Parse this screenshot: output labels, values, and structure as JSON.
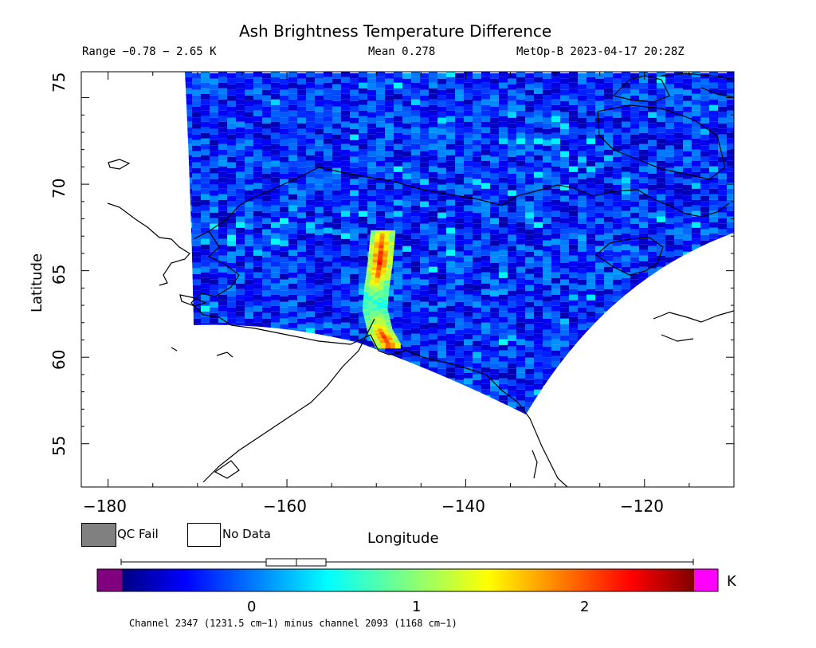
{
  "title": "Ash Brightness Temperature Difference",
  "header": {
    "range": "Range −0.78 − 2.65 K",
    "mean": "Mean 0.278",
    "satellite_time": "MetOp-B 2023-04-17 20:28Z"
  },
  "axes": {
    "xlabel": "Longitude",
    "ylabel": "Latitude",
    "xticks": [
      "−180",
      "−160",
      "−140",
      "−120"
    ],
    "yticks": [
      "75",
      "70",
      "65",
      "60",
      "55"
    ]
  },
  "legend": {
    "qc_fail": "QC Fail",
    "no_data": "No Data",
    "qc_color": "#808080"
  },
  "colorbar": {
    "unit": "K",
    "ticks": [
      "0",
      "1",
      "2"
    ],
    "under_color": "#800080",
    "over_color": "#ff00ff"
  },
  "caption": "Channel 2347 (1231.5 cm−1) minus channel 2093 (1168 cm−1)",
  "chart_data": {
    "type": "heatmap",
    "title": "Ash Brightness Temperature Difference",
    "xlabel": "Longitude",
    "ylabel": "Latitude",
    "xlim": [
      -183,
      -110
    ],
    "ylim": [
      52.5,
      76.5
    ],
    "value_range": [
      -0.78,
      2.65
    ],
    "mean": 0.278,
    "unit": "K",
    "colorbar_range": [
      -0.4,
      2.6
    ],
    "boxplot": {
      "min": -0.78,
      "q1": 0.05,
      "median": 0.18,
      "q3": 0.27,
      "max": 2.65
    },
    "ash_plume": [
      [
        -149.3,
        67.2
      ],
      [
        -149.6,
        65.5
      ],
      [
        -150.0,
        64.0
      ],
      [
        -150.2,
        62.8
      ],
      [
        -149.6,
        61.5
      ],
      [
        -148.6,
        60.6
      ]
    ]
  }
}
